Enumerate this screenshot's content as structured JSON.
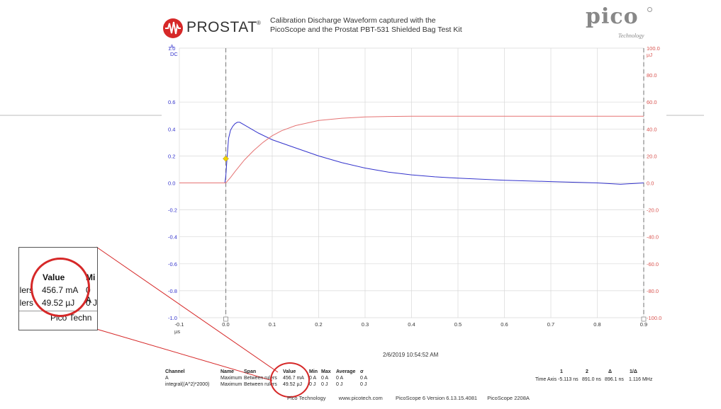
{
  "header": {
    "logo_text": "PROSTAT",
    "logo_mark": "®",
    "caption_line1": "Calibration Discharge Waveform captured with the",
    "caption_line2": "PicoScope and the Prostat PBT-531 Shielded Bag Test Kit",
    "brand_logo": "pico",
    "brand_sub": "Technology"
  },
  "chart_data": {
    "type": "line",
    "x_unit": "µs",
    "xlim": [
      -0.1,
      0.9
    ],
    "x_ticks": [
      "-0.1",
      "0.0",
      "0.1",
      "0.2",
      "0.3",
      "0.4",
      "0.5",
      "0.6",
      "0.7",
      "0.8",
      "0.9"
    ],
    "y_left": {
      "range": [
        -1.0,
        1.0
      ],
      "unit_lines": [
        "A",
        "DC"
      ],
      "ticks": [
        "1.0",
        "0.6",
        "0.4",
        "0.2",
        "0.0",
        "-0.2",
        "-0.4",
        "-0.6",
        "-0.8",
        "-1.0"
      ],
      "tick_values": [
        1.0,
        0.6,
        0.4,
        0.2,
        0.0,
        -0.2,
        -0.4,
        -0.6,
        -0.8,
        -1.0
      ],
      "color": "#3333cc"
    },
    "y_right": {
      "range": [
        -100,
        100
      ],
      "unit": "µJ",
      "ticks": [
        "100.0",
        "80.0",
        "60.0",
        "40.0",
        "20.0",
        "0.0",
        "-20.0",
        "-40.0",
        "-60.0",
        "-80.0",
        "-100.0"
      ],
      "tick_values": [
        100,
        80,
        60,
        40,
        20,
        0,
        -20,
        -40,
        -60,
        -80,
        -100
      ],
      "color": "#d9534f"
    },
    "rulers_x": [
      0.0,
      0.9
    ],
    "marker": {
      "x": 0.0,
      "y": 0.18,
      "color": "#f0d000"
    },
    "series": [
      {
        "axis": "left",
        "color": "#3333cc",
        "x": [
          -0.1,
          -0.05,
          -0.002,
          0.0,
          0.003,
          0.006,
          0.01,
          0.015,
          0.02,
          0.025,
          0.03,
          0.04,
          0.05,
          0.07,
          0.1,
          0.15,
          0.2,
          0.25,
          0.3,
          0.35,
          0.4,
          0.45,
          0.5,
          0.6,
          0.7,
          0.8,
          0.85,
          0.9
        ],
        "y": [
          0.0,
          0.0,
          0.0,
          0.05,
          0.2,
          0.33,
          0.39,
          0.42,
          0.44,
          0.45,
          0.45,
          0.43,
          0.41,
          0.37,
          0.32,
          0.26,
          0.2,
          0.15,
          0.11,
          0.08,
          0.06,
          0.045,
          0.035,
          0.02,
          0.01,
          0.0,
          -0.01,
          0.0
        ]
      },
      {
        "axis": "right",
        "color": "#e57373",
        "x": [
          -0.1,
          -0.05,
          0.0,
          0.01,
          0.02,
          0.04,
          0.06,
          0.08,
          0.1,
          0.12,
          0.15,
          0.2,
          0.25,
          0.3,
          0.35,
          0.4,
          0.5,
          0.6,
          0.7,
          0.8,
          0.9
        ],
        "y": [
          0.0,
          0.0,
          0.0,
          4.0,
          8.5,
          17.0,
          24.0,
          30.0,
          35.0,
          38.7,
          42.5,
          46.3,
          48.0,
          48.9,
          49.3,
          49.5,
          49.5,
          49.5,
          49.5,
          49.5,
          49.5
        ]
      }
    ]
  },
  "timestamp": "2/6/2019 10:54:52 AM",
  "measurements": {
    "headers": [
      "Channel",
      "Name",
      "Span",
      "Value",
      "Min",
      "Max",
      "Average",
      "σ"
    ],
    "rows": [
      [
        "A",
        "Maximum",
        "Between rulers",
        "456.7 mA",
        "0 A",
        "0 A",
        "0 A",
        "0 A"
      ],
      [
        "integral((A^2)*2000)",
        "Maximum",
        "Between rulers",
        "49.52 µJ",
        "0 J",
        "0 J",
        "0 J",
        "0 J"
      ]
    ]
  },
  "time_axis": {
    "headers": [
      "1",
      "2",
      "Δ",
      "1/Δ"
    ],
    "label": "Time Axis",
    "values": [
      "-5.113 ns",
      "891.0 ns",
      "896.1 ns",
      "1.116 MHz"
    ]
  },
  "footer": {
    "company": "Pico Technology",
    "url": "www.picotech.com",
    "version": "PicoScope 6 Version 6.13.15.4081",
    "device": "PicoScope 2208A"
  },
  "zoom_inset": {
    "header_value": "Value",
    "header_next": "Mi",
    "row1_left": "ulers",
    "row1_value": "456.7 mA",
    "row1_right": "0 A",
    "row2_left": "ulers",
    "row2_value": "49.52 µJ",
    "row2_right": "0 J",
    "footer_text": "Pico Techn"
  },
  "colors": {
    "highlight_circle": "#d62828",
    "callout_line": "#d62828",
    "grid": "#d8d8d8",
    "ruler": "#888888"
  }
}
